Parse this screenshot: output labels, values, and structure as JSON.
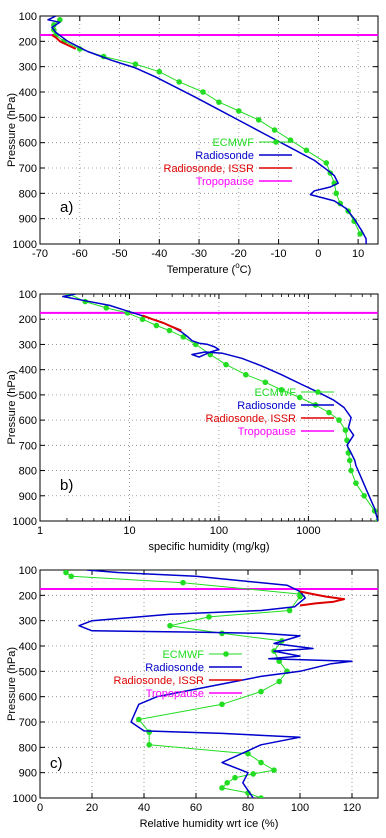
{
  "chart_data": [
    {
      "type": "line",
      "panel_label": "a)",
      "xlabel": "Temperature (",
      "xlabel_sup": "o",
      "xlabel_end": "C)",
      "ylabel": "Pressure (hPa)",
      "xlim": [
        -70,
        15
      ],
      "ylim": [
        1000,
        100
      ],
      "y_reversed": true,
      "x_scale": "linear",
      "x_ticks": [
        -70,
        -60,
        -50,
        -40,
        -30,
        -20,
        -10,
        0,
        10
      ],
      "x_tick_labels": [
        "-70",
        "-60",
        "-50",
        "-40",
        "-30",
        "-20",
        "-10",
        "0",
        "10"
      ],
      "y_ticks": [
        100,
        200,
        300,
        400,
        500,
        600,
        700,
        800,
        900,
        1000
      ],
      "grid": true,
      "legend_position": "bottom-middle",
      "legend": [
        "ECMWF",
        "Radiosonde",
        "Radiosonde, ISSR",
        "Tropopause"
      ],
      "series": [
        {
          "name": "ECMWF",
          "color": "#22dd22",
          "markers": true,
          "x": [
            -65,
            -66.5,
            -66.5,
            -66,
            -64,
            -60,
            -54,
            -46,
            -40,
            -35,
            -29,
            -25,
            -20,
            -15,
            -11,
            -7,
            -3,
            2,
            3,
            4,
            4.5,
            5.5,
            7.5,
            9,
            10.5
          ],
          "y": [
            115,
            135,
            155,
            175,
            200,
            230,
            260,
            290,
            320,
            360,
            400,
            440,
            475,
            510,
            550,
            590,
            630,
            680,
            720,
            760,
            800,
            840,
            870,
            910,
            960
          ]
        },
        {
          "name": "Radiosonde",
          "color": "#0000cc",
          "markers": false,
          "x": [
            -66,
            -68,
            -65,
            -67,
            -66,
            -63,
            -58,
            -52,
            -46,
            -41,
            -36,
            -31,
            -25,
            -19,
            -13,
            -7,
            -1,
            2,
            4,
            5,
            3,
            -1,
            -2,
            4,
            7,
            9,
            11,
            12,
            12
          ],
          "y": [
            100,
            115,
            125,
            145,
            165,
            200,
            240,
            275,
            305,
            340,
            380,
            420,
            470,
            520,
            570,
            620,
            670,
            705,
            730,
            760,
            775,
            790,
            805,
            830,
            860,
            900,
            950,
            980,
            1000
          ]
        },
        {
          "name": "Radiosonde, ISSR",
          "color": "#dd0000",
          "markers": false,
          "x": [
            -67,
            -66,
            -65,
            -63,
            -61
          ],
          "y": [
            175,
            185,
            200,
            215,
            230
          ]
        }
      ],
      "tropopause_hPa": 175
    },
    {
      "type": "line",
      "panel_label": "b)",
      "xlabel": "specific humidity (mg/kg)",
      "ylabel": "Pressure (hPa)",
      "xlim": [
        1,
        6000
      ],
      "x_scale": "log",
      "x_ticks": [
        1,
        10,
        100,
        1000
      ],
      "x_tick_labels": [
        "1",
        "10",
        "100",
        "1000"
      ],
      "ylim": [
        1000,
        100
      ],
      "y_reversed": true,
      "y_ticks": [
        100,
        200,
        300,
        400,
        500,
        600,
        700,
        800,
        900,
        1000
      ],
      "grid": true,
      "legend_position": "middle-right",
      "legend": [
        "ECMWF",
        "Radiosonde",
        "Radiosonde, ISSR",
        "Tropopause"
      ],
      "series": [
        {
          "name": "ECMWF",
          "color": "#22dd22",
          "markers": true,
          "x": [
            2.1,
            3.2,
            5.5,
            9.5,
            14,
            20,
            28,
            40,
            55,
            80,
            120,
            200,
            330,
            500,
            800,
            1200,
            1700,
            2200,
            2600,
            2700,
            2800,
            2900,
            3000,
            3400,
            4200,
            5500,
            6000
          ],
          "y": [
            100,
            130,
            155,
            175,
            200,
            225,
            245,
            270,
            300,
            340,
            380,
            420,
            450,
            480,
            510,
            540,
            570,
            600,
            640,
            680,
            730,
            760,
            800,
            850,
            900,
            960,
            1000
          ]
        },
        {
          "name": "Radiosonde",
          "color": "#0000cc",
          "markers": false,
          "x": [
            2.5,
            1.8,
            3,
            6,
            10,
            15,
            22,
            30,
            38,
            45,
            50,
            60,
            75,
            90,
            100,
            80,
            60,
            50,
            70,
            110,
            180,
            300,
            500,
            800,
            1300,
            1900,
            2500,
            3000,
            2800,
            3200,
            2700,
            3000,
            3300,
            3400,
            3800,
            4500,
            5500,
            6000
          ],
          "y": [
            100,
            110,
            125,
            145,
            170,
            190,
            210,
            230,
            250,
            270,
            285,
            295,
            300,
            310,
            320,
            330,
            350,
            340,
            330,
            335,
            355,
            385,
            420,
            455,
            490,
            520,
            550,
            590,
            630,
            660,
            700,
            730,
            760,
            780,
            820,
            880,
            950,
            1000
          ]
        },
        {
          "name": "Radiosonde, ISSR",
          "color": "#dd0000",
          "markers": false,
          "x": [
            14,
            18,
            24,
            30,
            38
          ],
          "y": [
            185,
            200,
            215,
            230,
            245
          ]
        }
      ],
      "tropopause_hPa": 175
    },
    {
      "type": "line",
      "panel_label": "c)",
      "xlabel": "Relative humidity wrt ice (%)",
      "ylabel": "Pressure (hPa)",
      "xlim": [
        0,
        130
      ],
      "x_scale": "linear",
      "x_ticks": [
        0,
        20,
        40,
        60,
        80,
        100,
        120
      ],
      "x_tick_labels": [
        "0",
        "20",
        "40",
        "60",
        "80",
        "100",
        "120"
      ],
      "ylim": [
        1000,
        100
      ],
      "y_reversed": true,
      "y_ticks": [
        100,
        200,
        300,
        400,
        500,
        600,
        700,
        800,
        900,
        1000
      ],
      "grid": true,
      "legend_position": "middle-left",
      "legend": [
        "ECMWF",
        "Radiosonde",
        "Radiosonde, ISSR",
        "Tropopause"
      ],
      "series": [
        {
          "name": "ECMWF",
          "color": "#22dd22",
          "markers": true,
          "x": [
            10,
            12,
            55,
            100,
            100,
            96,
            65,
            50,
            70,
            93,
            90,
            92,
            95,
            92,
            85,
            70,
            38,
            42,
            42,
            80,
            85,
            90,
            82,
            75,
            72,
            70,
            80,
            85
          ],
          "y": [
            110,
            125,
            150,
            195,
            205,
            260,
            285,
            320,
            350,
            380,
            420,
            460,
            500,
            540,
            580,
            630,
            690,
            740,
            790,
            825,
            860,
            890,
            905,
            920,
            940,
            960,
            980,
            1000
          ]
        },
        {
          "name": "Radiosonde",
          "color": "#0000cc",
          "markers": false,
          "x": [
            18,
            30,
            60,
            95,
            100,
            102,
            98,
            85,
            50,
            20,
            15,
            20,
            60,
            85,
            100,
            90,
            105,
            90,
            100,
            88,
            120,
            112,
            100,
            85,
            75,
            55,
            45,
            38,
            35,
            40,
            55,
            70,
            100,
            85,
            70,
            80,
            78,
            80,
            82
          ],
          "y": [
            100,
            110,
            125,
            160,
            185,
            210,
            245,
            260,
            275,
            300,
            320,
            340,
            345,
            350,
            360,
            390,
            410,
            420,
            440,
            450,
            460,
            470,
            500,
            520,
            540,
            580,
            600,
            630,
            700,
            735,
            740,
            745,
            760,
            790,
            860,
            900,
            940,
            970,
            1000
          ]
        },
        {
          "name": "Radiosonde, ISSR",
          "color": "#dd0000",
          "markers": false,
          "x": [
            100,
            105,
            110,
            117,
            113,
            106,
            100
          ],
          "y": [
            185,
            195,
            205,
            215,
            225,
            232,
            240
          ]
        }
      ],
      "tropopause_hPa": 175
    }
  ]
}
